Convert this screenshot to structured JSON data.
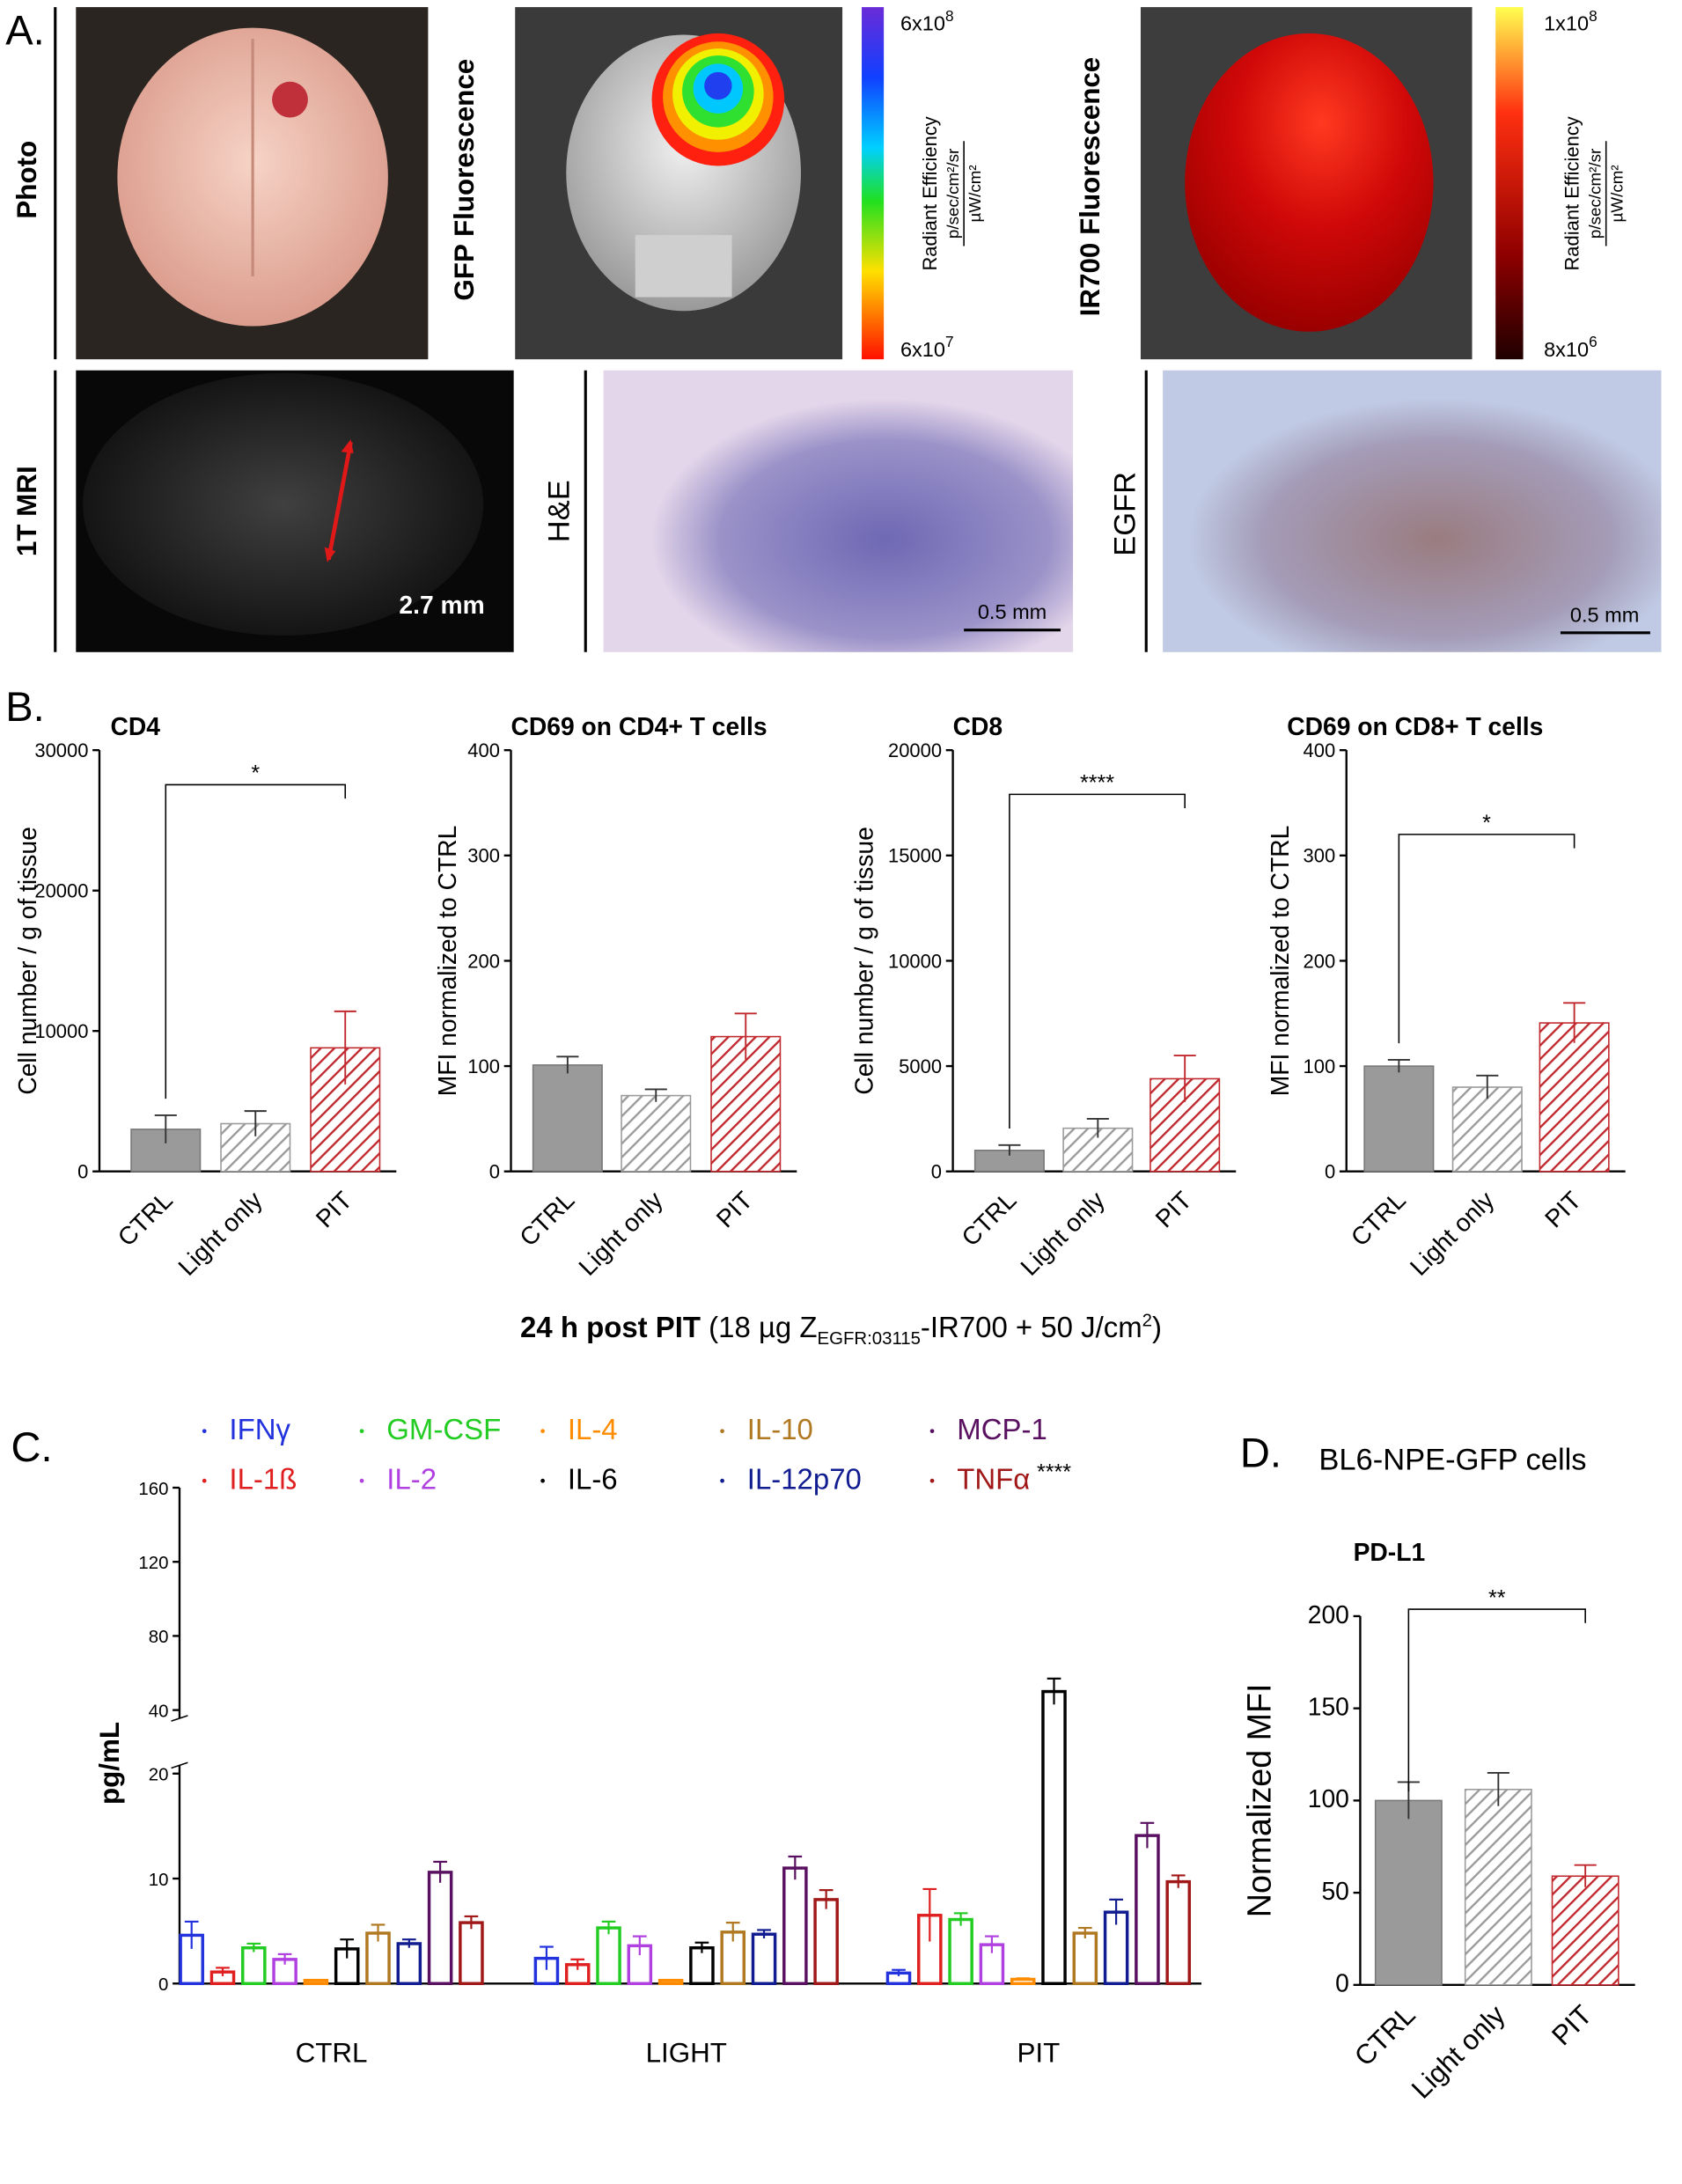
{
  "panel_a": {
    "label": "A.",
    "photo": "Photo",
    "gfp": "GFP Fluorescence",
    "ir700": "IR700 Fluorescence",
    "mri": "1T MRI",
    "he": "H&E",
    "egfr": "EGFR",
    "mri_scale": "2.7 mm",
    "he_scale": "0.5 mm",
    "egfr_scale": "0.5 mm",
    "colorbar_title": "Radiant Efficiency",
    "colorbar_num": "p/sec/cm²/sr",
    "colorbar_den": "µW/cm²",
    "gfp_max": {
      "base": "6x10",
      "exp": "8"
    },
    "gfp_min": {
      "base": "6x10",
      "exp": "7"
    },
    "ir_max": {
      "base": "1x10",
      "exp": "8"
    },
    "ir_min": {
      "base": "8x10",
      "exp": "6"
    }
  },
  "panel_b": {
    "label": "B.",
    "footnote": [
      "24 h post PIT",
      "(18 µg Z",
      "EGFR:03115",
      "-IR700 + 50 J/cm",
      "2",
      ")"
    ]
  },
  "panel_c": {
    "label": "C."
  },
  "panel_d": {
    "label": "D.",
    "subtitle": "BL6-NPE-GFP cells"
  },
  "chart_data": [
    {
      "type": "bar",
      "title": "CD4",
      "y_label": "Cell number / g of tissue",
      "categories": [
        "CTRL",
        "Light only",
        "PIT"
      ],
      "values": [
        3000,
        3400,
        8800
      ],
      "errors": [
        1000,
        900,
        2600
      ],
      "colors": [
        "#9a9a9a",
        "#9a9a9a",
        "#c0282d"
      ],
      "fills": [
        "solid",
        "hatch",
        "hatch"
      ],
      "ylim": [
        0,
        30000
      ],
      "yticks": [
        0,
        10000,
        20000,
        30000
      ],
      "significance": "*"
    },
    {
      "type": "bar",
      "title": "CD69 on CD4+ T cells",
      "y_label": "MFI normalized to CTRL",
      "categories": [
        "CTRL",
        "Light only",
        "PIT"
      ],
      "values": [
        101,
        72,
        128
      ],
      "errors": [
        8,
        6,
        22
      ],
      "colors": [
        "#9a9a9a",
        "#9a9a9a",
        "#c0282d"
      ],
      "fills": [
        "solid",
        "hatch",
        "hatch"
      ],
      "ylim": [
        0,
        400
      ],
      "yticks": [
        0,
        100,
        200,
        300,
        400
      ]
    },
    {
      "type": "bar",
      "title": "CD8",
      "y_label": "Cell number / g of tissue",
      "categories": [
        "CTRL",
        "Light only",
        "PIT"
      ],
      "values": [
        1000,
        2050,
        4400
      ],
      "errors": [
        250,
        450,
        1100
      ],
      "colors": [
        "#9a9a9a",
        "#9a9a9a",
        "#c0282d"
      ],
      "fills": [
        "solid",
        "hatch",
        "hatch"
      ],
      "ylim": [
        0,
        20000
      ],
      "yticks": [
        0,
        5000,
        10000,
        15000,
        20000
      ],
      "significance": "****"
    },
    {
      "type": "bar",
      "title": "CD69 on CD8+ T cells",
      "y_label": "MFI normalized to CTRL",
      "categories": [
        "CTRL",
        "Light only",
        "PIT"
      ],
      "values": [
        100,
        80,
        141
      ],
      "errors": [
        6,
        11,
        19
      ],
      "colors": [
        "#9a9a9a",
        "#9a9a9a",
        "#c0282d"
      ],
      "fills": [
        "solid",
        "hatch",
        "hatch"
      ],
      "ylim": [
        0,
        400
      ],
      "yticks": [
        0,
        100,
        200,
        300,
        400
      ],
      "significance": "*"
    },
    {
      "type": "grouped-bar",
      "y_label": "pg/mL",
      "categories": [
        "CTRL",
        "LIGHT",
        "PIT"
      ],
      "ylim": [
        0,
        160
      ],
      "y_break": [
        20,
        40
      ],
      "yticks": [
        0,
        10,
        20,
        40,
        80,
        120,
        160
      ],
      "significance": "****",
      "series": [
        {
          "name": "IFNγ",
          "color": "#2233dd",
          "values": [
            4.6,
            2.4,
            1.0
          ],
          "errors": [
            1.3,
            1.1,
            0.3
          ]
        },
        {
          "name": "IL-1ß",
          "color": "#e02020",
          "values": [
            1.1,
            1.8,
            6.5
          ],
          "errors": [
            0.4,
            0.5,
            2.5
          ]
        },
        {
          "name": "GM-CSF",
          "color": "#22cc22",
          "values": [
            3.4,
            5.3,
            6.1
          ],
          "errors": [
            0.4,
            0.6,
            0.6
          ]
        },
        {
          "name": "IL-2",
          "color": "#b040e0",
          "values": [
            2.3,
            3.6,
            3.7
          ],
          "errors": [
            0.5,
            0.9,
            0.8
          ]
        },
        {
          "name": "IL-4",
          "color": "#ff8c00",
          "values": [
            0.3,
            0.3,
            0.4
          ],
          "errors": [
            0.05,
            0.05,
            0.1
          ]
        },
        {
          "name": "IL-6",
          "color": "#000000",
          "values": [
            3.3,
            3.4,
            50
          ],
          "errors": [
            0.9,
            0.5,
            7
          ]
        },
        {
          "name": "IL-10",
          "color": "#b07820",
          "values": [
            4.8,
            4.9,
            4.8
          ],
          "errors": [
            0.8,
            0.9,
            0.5
          ]
        },
        {
          "name": "IL-12p70",
          "color": "#101c90",
          "values": [
            3.8,
            4.7,
            6.8
          ],
          "errors": [
            0.4,
            0.4,
            1.2
          ]
        },
        {
          "name": "MCP-1",
          "color": "#5a1060",
          "values": [
            10.6,
            11.0,
            14.1
          ],
          "errors": [
            1.0,
            1.1,
            1.2
          ]
        },
        {
          "name": "TNFα",
          "color": "#a01818",
          "values": [
            5.8,
            8.0,
            9.7
          ],
          "errors": [
            0.6,
            0.9,
            0.6
          ]
        }
      ]
    },
    {
      "type": "bar",
      "title": "PD-L1",
      "y_label": "Normalized MFI",
      "categories": [
        "CTRL",
        "Light only",
        "PIT"
      ],
      "values": [
        100,
        106,
        59
      ],
      "errors": [
        10,
        9,
        6
      ],
      "colors": [
        "#9a9a9a",
        "#9a9a9a",
        "#c0282d"
      ],
      "fills": [
        "solid",
        "hatch",
        "hatch"
      ],
      "ylim": [
        0,
        200
      ],
      "yticks": [
        0,
        50,
        100,
        150,
        200
      ],
      "significance": "**"
    }
  ]
}
